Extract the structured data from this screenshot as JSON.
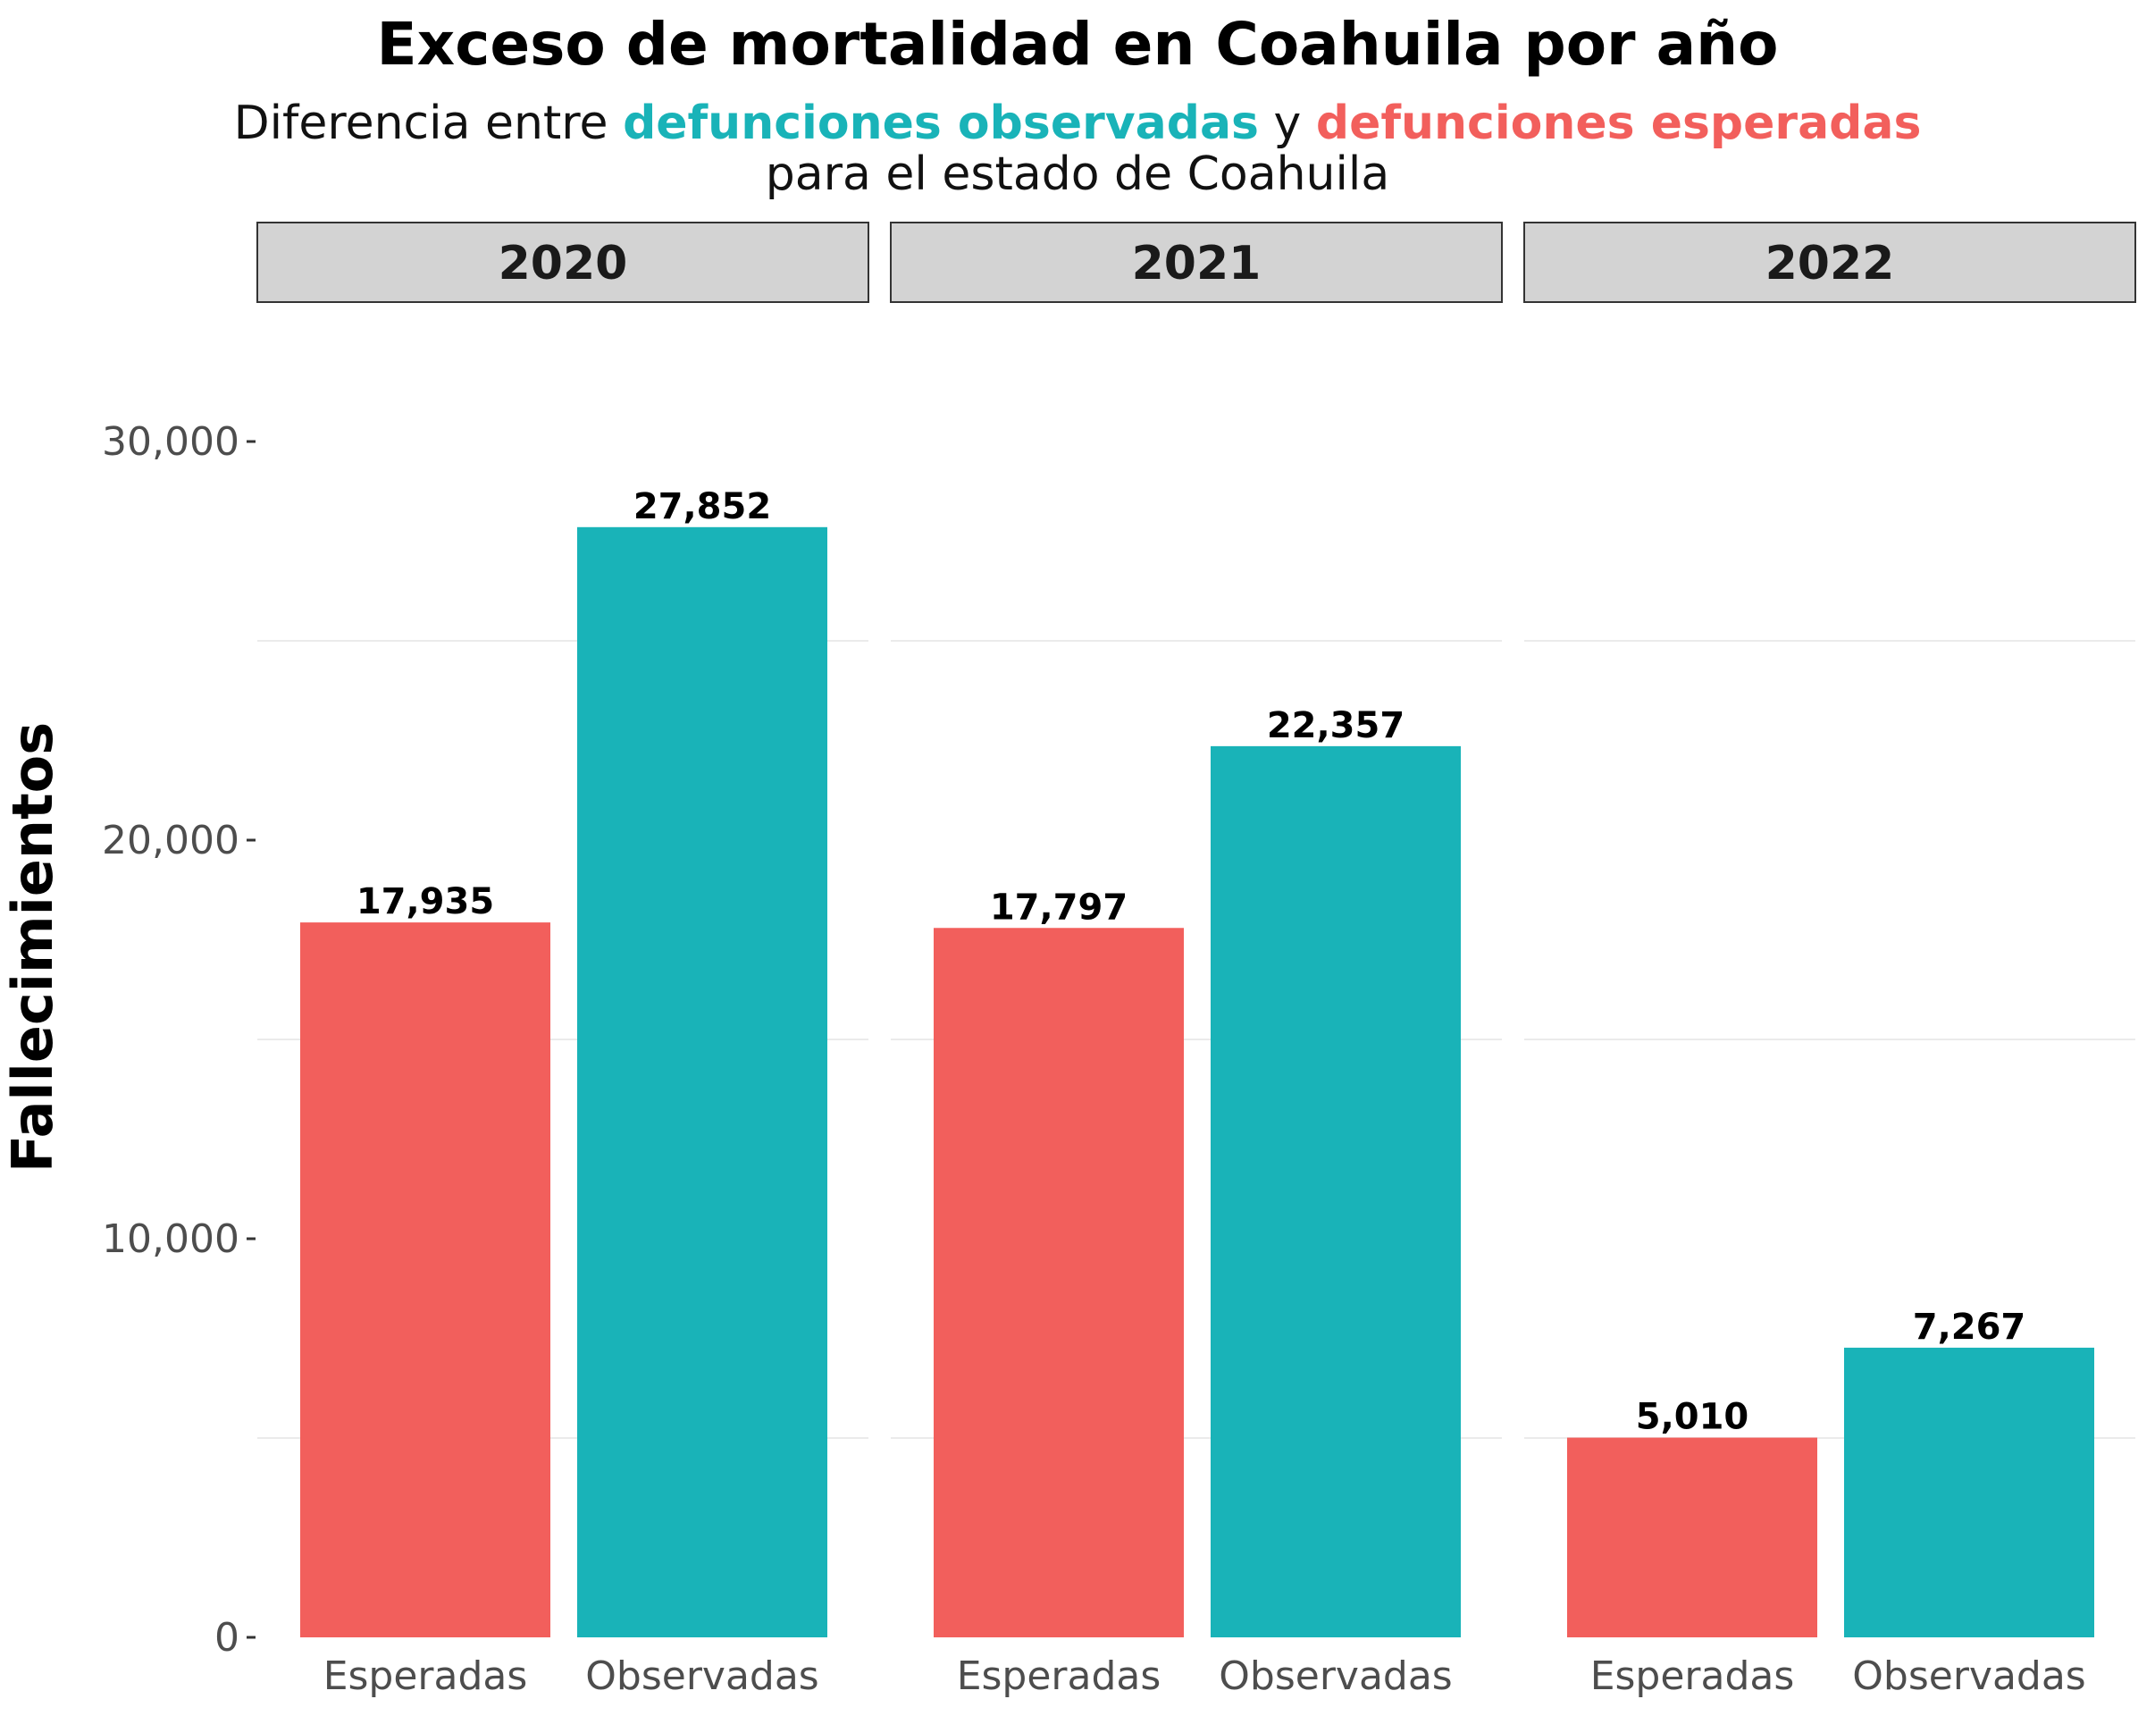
{
  "chart_data": {
    "type": "bar",
    "title": "Exceso de mortalidad en Coahuila por año",
    "subtitle": {
      "line1_prefix": "Diferencia entre ",
      "line1_observed": "defunciones observadas",
      "line1_mid": " y ",
      "line1_expected": "defunciones esperadas",
      "line2": "para el estado de Coahuila"
    },
    "ylabel": "Fallecimientos",
    "xlabel": "",
    "ylim": [
      0,
      30000
    ],
    "yticks": [
      0,
      10000,
      20000,
      30000
    ],
    "ytick_labels": [
      "0",
      "10,000",
      "20,000",
      "30,000"
    ],
    "grid": true,
    "legend": "none",
    "colors": {
      "Esperadas": "#F25F5C",
      "Observadas": "#19B3B8"
    },
    "categories": [
      "Esperadas",
      "Observadas"
    ],
    "facets": [
      {
        "label": "2020",
        "values": [
          17935,
          27852
        ],
        "value_labels": [
          "17,935",
          "27,852"
        ]
      },
      {
        "label": "2021",
        "values": [
          17797,
          22357
        ],
        "value_labels": [
          "17,797",
          "22,357"
        ]
      },
      {
        "label": "2022",
        "values": [
          5010,
          7267
        ],
        "value_labels": [
          "5,010",
          "7,267"
        ]
      }
    ]
  }
}
